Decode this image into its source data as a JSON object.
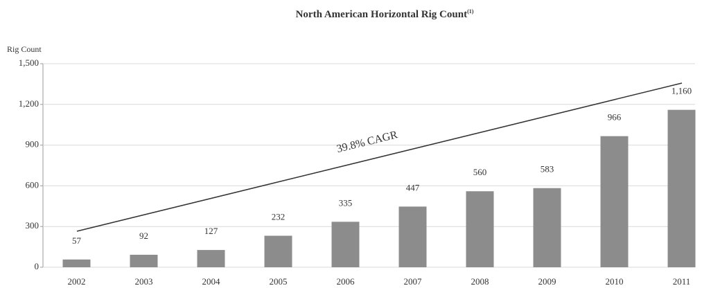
{
  "chart_data": {
    "type": "bar",
    "title": "North American Horizontal Rig Count",
    "title_note": "(1)",
    "y_label": "Rig Count",
    "annotation": "39.8% CAGR",
    "categories": [
      "2002",
      "2003",
      "2004",
      "2005",
      "2006",
      "2007",
      "2008",
      "2009",
      "2010",
      "2011"
    ],
    "values": [
      57,
      92,
      127,
      232,
      335,
      447,
      560,
      583,
      966,
      1160
    ],
    "value_labels": [
      "57",
      "92",
      "127",
      "232",
      "335",
      "447",
      "560",
      "583",
      "966",
      "1,160"
    ],
    "color": "#8c8c8c",
    "ylim": [
      0,
      1500
    ],
    "yticks": [
      0,
      300,
      600,
      900,
      {
        "value": 1200,
        "label": "1,200"
      },
      {
        "value": 1500,
        "label": "1,500"
      }
    ],
    "grid": true
  }
}
